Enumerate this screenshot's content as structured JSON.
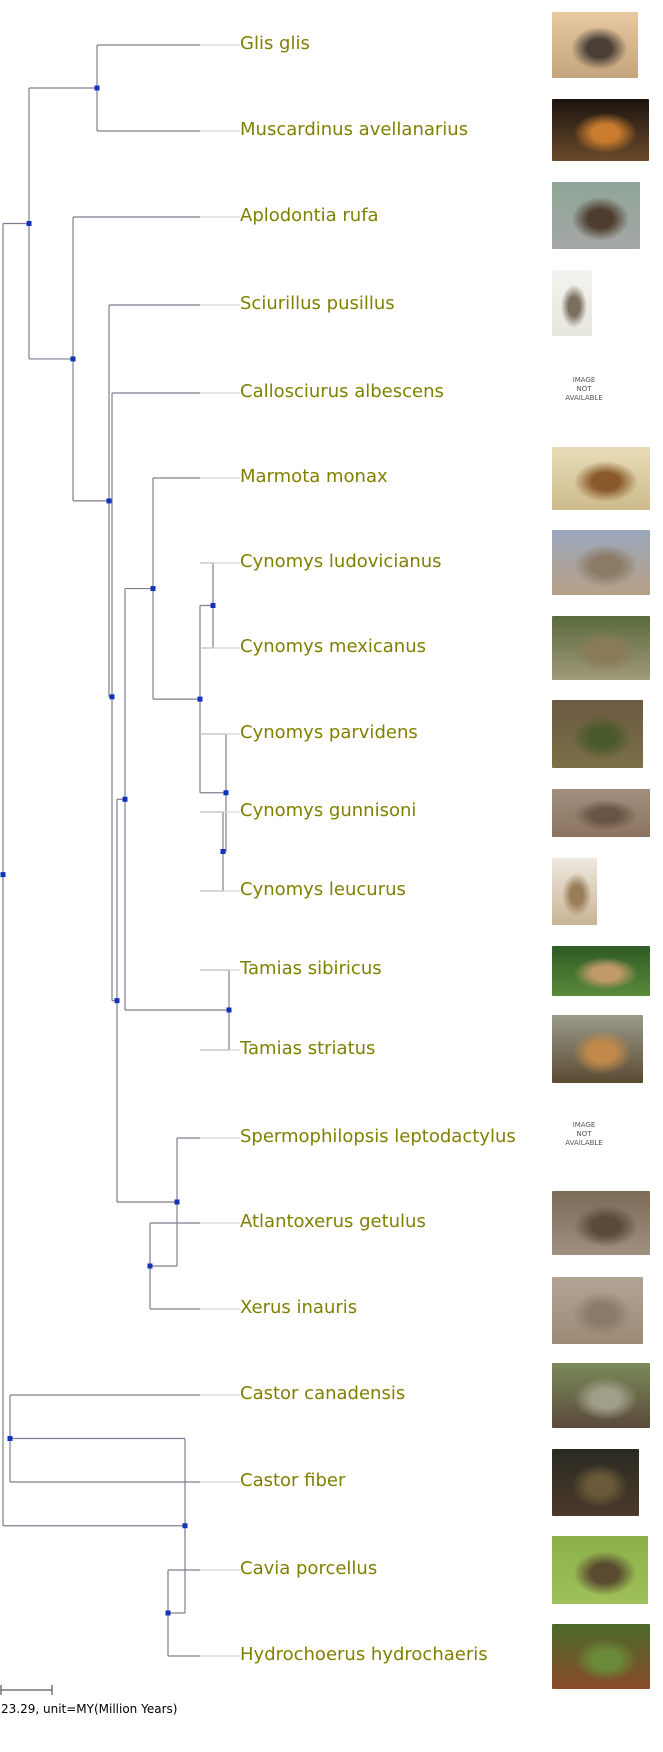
{
  "leaves": [
    {
      "name": "Glis glis",
      "image": "photo",
      "colors": [
        "#e8c9a0",
        "#c4a47c",
        "#4a4038"
      ]
    },
    {
      "name": "Muscardinus avellanarius",
      "image": "photo",
      "colors": [
        "#1c1410",
        "#6a4a2a",
        "#c97b2e"
      ]
    },
    {
      "name": "Aplodontia rufa",
      "image": "photo",
      "colors": [
        "#8fa596",
        "#a5a7a6",
        "#4e3c2e"
      ]
    },
    {
      "name": "Sciurillus pusillus",
      "image": "photo",
      "colors": [
        "#f4f3ef",
        "#e7e6df",
        "#7b7060"
      ]
    },
    {
      "name": "Callosciurus albescens",
      "image": "not-available",
      "na_text": [
        "IMAGE",
        "NOT",
        "AVAILABLE"
      ]
    },
    {
      "name": "Marmota monax",
      "image": "photo",
      "colors": [
        "#e8dcb8",
        "#cdbb8c",
        "#8a5a2a"
      ]
    },
    {
      "name": "Cynomys ludovicianus",
      "image": "photo",
      "colors": [
        "#9ba8bd",
        "#b79f86",
        "#8a7a66"
      ]
    },
    {
      "name": "Cynomys mexicanus",
      "image": "photo",
      "colors": [
        "#5a6a3c",
        "#a09a7a",
        "#8a7a56"
      ]
    },
    {
      "name": "Cynomys parvidens",
      "image": "photo",
      "colors": [
        "#6c5a42",
        "#7a7046",
        "#4a5a2a"
      ]
    },
    {
      "name": "Cynomys gunnisoni",
      "image": "photo",
      "colors": [
        "#a08e7c",
        "#8c7462",
        "#6a5444"
      ]
    },
    {
      "name": "Cynomys leucurus",
      "image": "photo",
      "colors": [
        "#efe9e0",
        "#c8b493",
        "#9a7e5a"
      ]
    },
    {
      "name": "Tamias sibiricus",
      "image": "photo",
      "colors": [
        "#2e5a24",
        "#5a8a3a",
        "#c29a6a"
      ]
    },
    {
      "name": "Tamias striatus",
      "image": "photo",
      "colors": [
        "#9a9a8a",
        "#5a4a32",
        "#c28a4a"
      ]
    },
    {
      "name": "Spermophilopsis leptodactylus",
      "image": "not-available",
      "na_text": [
        "IMAGE",
        "NOT",
        "AVAILABLE"
      ]
    },
    {
      "name": "Atlantoxerus getulus",
      "image": "photo",
      "colors": [
        "#7a6a56",
        "#a09080",
        "#5a4a3a"
      ]
    },
    {
      "name": "Xerus inauris",
      "image": "photo",
      "colors": [
        "#b2a494",
        "#9c8a76",
        "#8c7a68"
      ]
    },
    {
      "name": "Castor canadensis",
      "image": "photo",
      "colors": [
        "#7a8a5a",
        "#5a4a3a",
        "#a0a08a"
      ]
    },
    {
      "name": "Castor fiber",
      "image": "photo",
      "colors": [
        "#2a2a22",
        "#4a3a2a",
        "#6a5a3a"
      ]
    },
    {
      "name": "Cavia porcellus",
      "image": "photo",
      "colors": [
        "#8ab04a",
        "#a0c05a",
        "#5a4a30"
      ]
    },
    {
      "name": "Hydrochoerus hydrochaeris",
      "image": "photo",
      "colors": [
        "#4a6a2a",
        "#8a4a2a",
        "#6a8a3a"
      ]
    }
  ],
  "tree": {
    "children": [
      {
        "children": [
          {
            "children": [
              {
                "leaf": 0
              },
              {
                "leaf": 1
              }
            ]
          },
          {
            "children": [
              {
                "leaf": 2
              },
              {
                "children": [
                  {
                    "leaf": 3
                  },
                  {
                    "children": [
                      {
                        "leaf": 4
                      },
                      {
                        "children": [
                          {
                            "children": [
                              {
                                "children": [
                                  {
                                    "leaf": 5
                                  },
                                  {
                                    "children": [
                                      {
                                        "children": [
                                          {
                                            "leaf": 6
                                          },
                                          {
                                            "leaf": 7
                                          }
                                        ]
                                      },
                                      {
                                        "children": [
                                          {
                                            "leaf": 8
                                          },
                                          {
                                            "children": [
                                              {
                                                "leaf": 9
                                              },
                                              {
                                                "leaf": 10
                                              }
                                            ]
                                          }
                                        ]
                                      }
                                    ]
                                  }
                                ]
                              },
                              {
                                "children": [
                                  {
                                    "leaf": 11
                                  },
                                  {
                                    "leaf": 12
                                  }
                                ]
                              }
                            ]
                          },
                          {
                            "children": [
                              {
                                "leaf": 13
                              },
                              {
                                "children": [
                                  {
                                    "leaf": 14
                                  },
                                  {
                                    "leaf": 15
                                  }
                                ]
                              }
                            ]
                          }
                        ]
                      }
                    ]
                  }
                ]
              }
            ]
          }
        ]
      },
      {
        "children": [
          {
            "children": [
              {
                "leaf": 16
              },
              {
                "leaf": 17
              }
            ]
          },
          {
            "children": [
              {
                "leaf": 18
              },
              {
                "leaf": 19
              }
            ]
          }
        ]
      }
    ]
  },
  "scale_bar": {
    "label": "23.29, unit=MY(Million Years)"
  },
  "colors": {
    "label": "#808000",
    "branch": "#7f7f8f",
    "node": "#1133bb",
    "tip": "#cccccc"
  }
}
